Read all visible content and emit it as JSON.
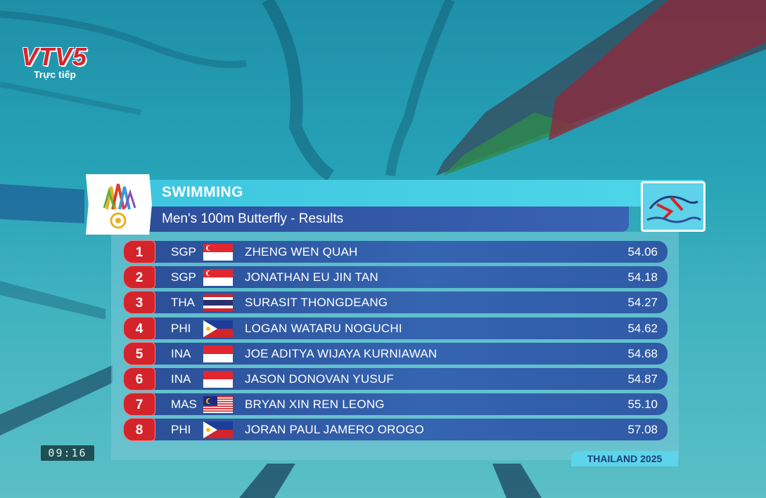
{
  "broadcaster": {
    "logo": "VTV5",
    "live_label": "Trực tiếp"
  },
  "clock": "09:16",
  "header": {
    "sport": "SWIMMING",
    "event": "Men's 100m Butterfly - Results",
    "games_emblem_icon": "sea-games-emblem-icon",
    "sport_icon": "swimming-mascot-icon"
  },
  "results": [
    {
      "rank": "1",
      "nat": "SGP",
      "flag": "flag-singapore-icon",
      "name": "ZHENG WEN QUAH",
      "time": "54.06"
    },
    {
      "rank": "2",
      "nat": "SGP",
      "flag": "flag-singapore-icon",
      "name": "JONATHAN EU JIN TAN",
      "time": "54.18"
    },
    {
      "rank": "3",
      "nat": "THA",
      "flag": "flag-thailand-icon",
      "name": "SURASIT THONGDEANG",
      "time": "54.27"
    },
    {
      "rank": "4",
      "nat": "PHI",
      "flag": "flag-philippines-icon",
      "name": "LOGAN WATARU NOGUCHI",
      "time": "54.62"
    },
    {
      "rank": "5",
      "nat": "INA",
      "flag": "flag-indonesia-icon",
      "name": "JOE ADITYA WIJAYA KURNIAWAN",
      "time": "54.68"
    },
    {
      "rank": "6",
      "nat": "INA",
      "flag": "flag-indonesia-icon",
      "name": "JASON DONOVAN YUSUF",
      "time": "54.87"
    },
    {
      "rank": "7",
      "nat": "MAS",
      "flag": "flag-malaysia-icon",
      "name": "BRYAN XIN REN LEONG",
      "time": "55.10"
    },
    {
      "rank": "8",
      "nat": "PHI",
      "flag": "flag-philippines-icon",
      "name": "JORAN PAUL JAMERO OROGO",
      "time": "57.08"
    }
  ],
  "footer": "THAILAND 2025",
  "colors": {
    "rank_red": "#d3242b",
    "row_blue": "#2b4e96",
    "header_cyan": "#4fd6ea",
    "accent_navy": "#1c3e7d"
  }
}
